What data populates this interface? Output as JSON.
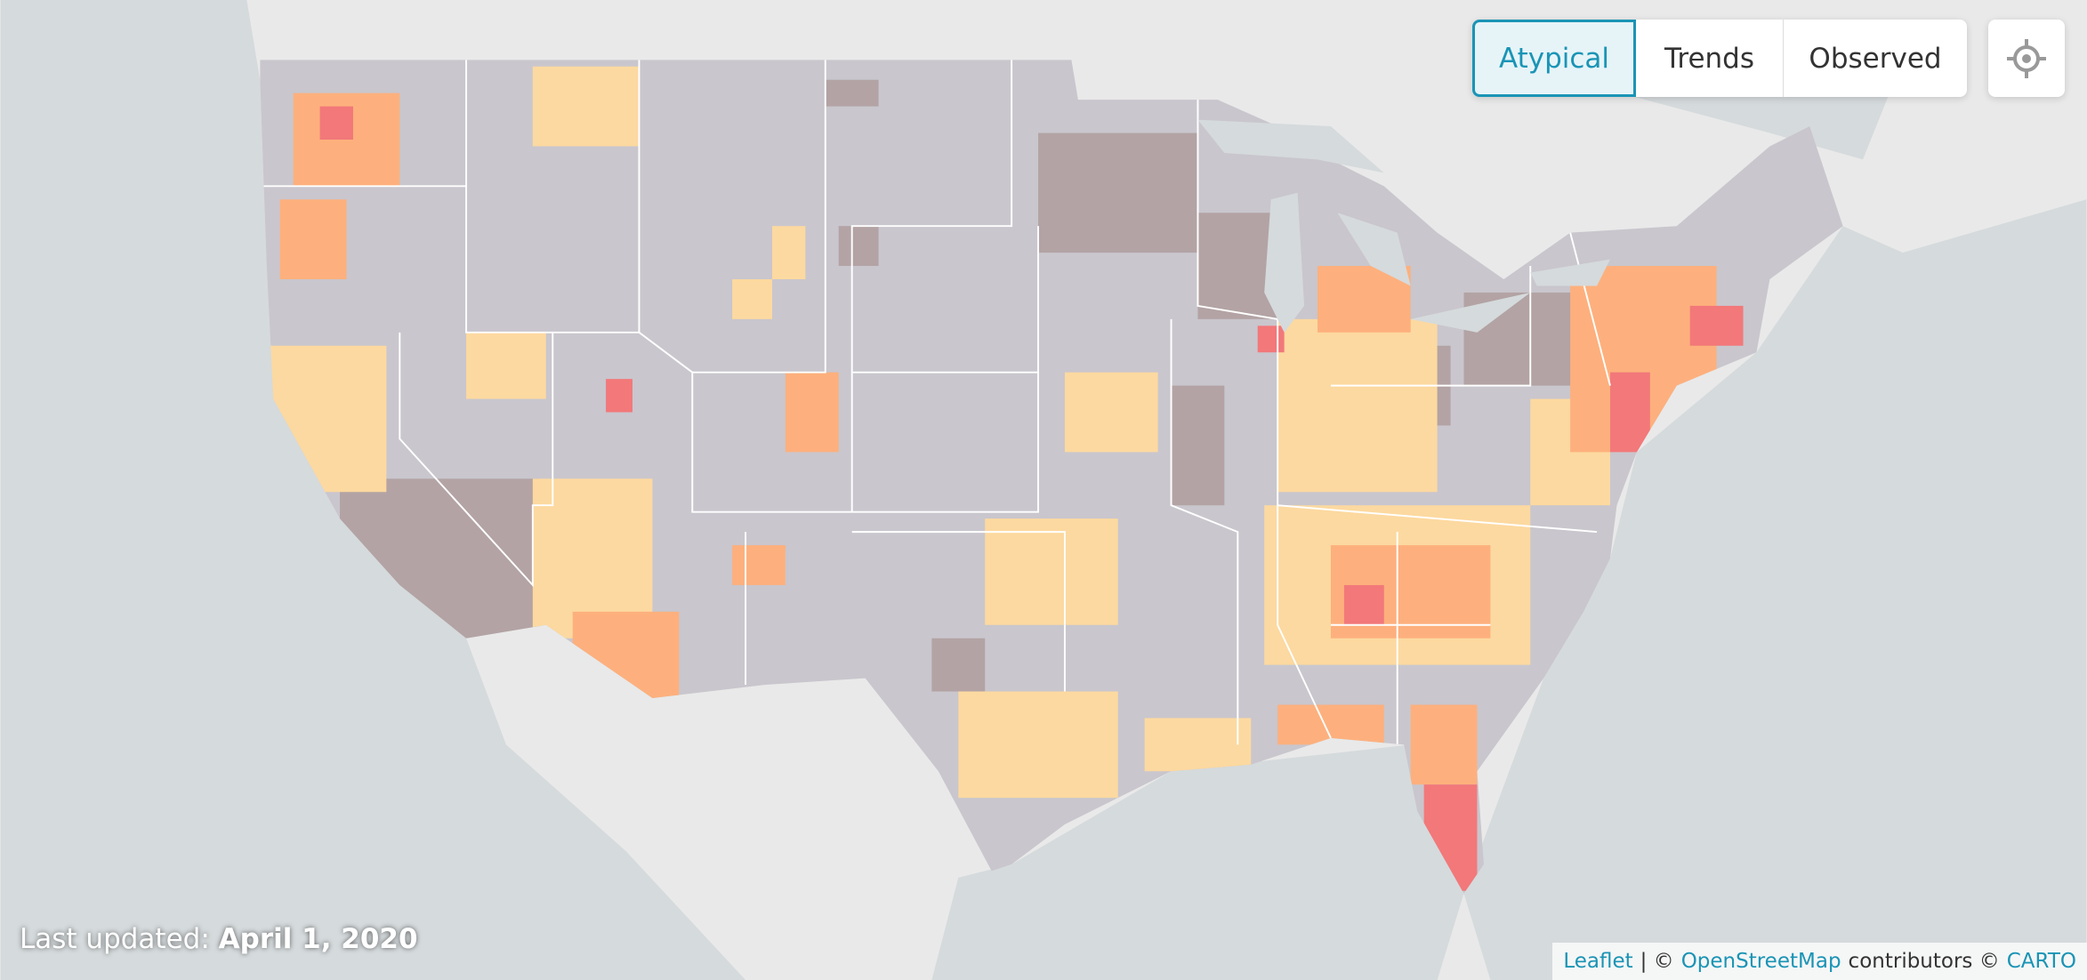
{
  "controls": {
    "buttons": [
      "Atypical",
      "Trends",
      "Observed"
    ],
    "active_index": 0
  },
  "footer": {
    "label": "Last updated:",
    "date": "April 1, 2020"
  },
  "attribution": {
    "leaflet": "Leaflet",
    "separator": "| ©",
    "osm": "OpenStreetMap",
    "contributors": "contributors ©",
    "carto": "CARTO"
  }
}
